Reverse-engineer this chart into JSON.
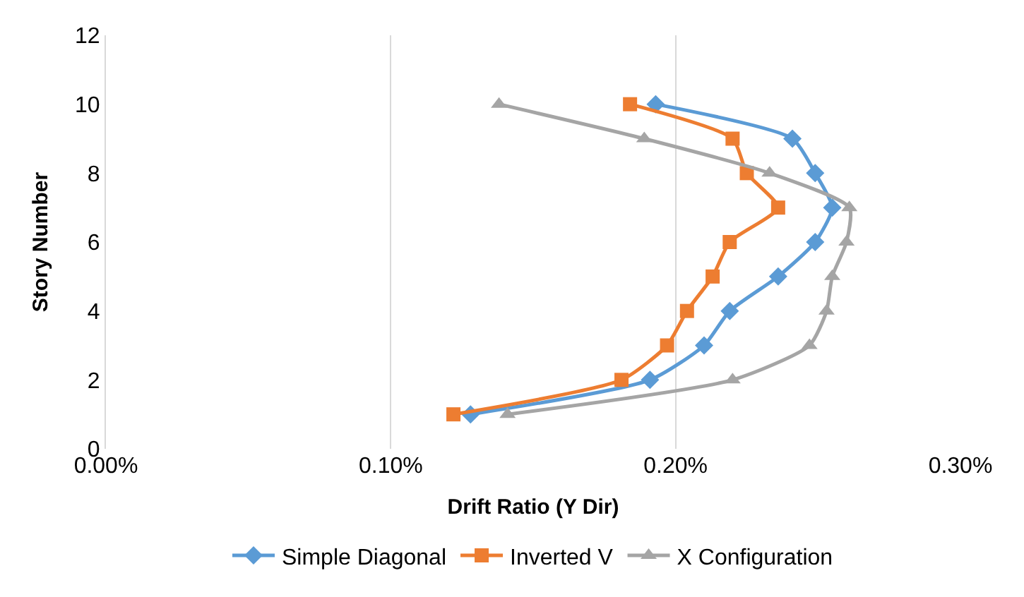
{
  "chart_data": {
    "type": "line",
    "xlabel": "Drift Ratio (Y Dir)",
    "ylabel": "Story Number",
    "xlim": [
      0,
      0.3
    ],
    "xticks": [
      {
        "value": 0,
        "label": "0.00%"
      },
      {
        "value": 0.1,
        "label": "0.10%"
      },
      {
        "value": 0.2,
        "label": "0.20%"
      },
      {
        "value": 0.3,
        "label": "0.30%"
      }
    ],
    "ylim": [
      0,
      12
    ],
    "yticks": [
      0,
      2,
      4,
      6,
      8,
      10,
      12
    ],
    "grid": "x",
    "legend": "bottom",
    "series": [
      {
        "name": "Simple Diagonal",
        "color": "#5b9bd5",
        "marker": "diamond",
        "x": [
          0.128,
          0.191,
          0.21,
          0.219,
          0.236,
          0.249,
          0.255,
          0.249,
          0.241,
          0.193
        ],
        "values": [
          1,
          2,
          3,
          4,
          5,
          6,
          7,
          8,
          9,
          10
        ]
      },
      {
        "name": "Inverted V",
        "color": "#ed7d31",
        "marker": "square",
        "x": [
          0.122,
          0.181,
          0.197,
          0.204,
          0.213,
          0.219,
          0.236,
          0.225,
          0.22,
          0.184
        ],
        "values": [
          1,
          2,
          3,
          4,
          5,
          6,
          7,
          8,
          9,
          10
        ]
      },
      {
        "name": "X Configuration",
        "color": "#a5a5a5",
        "marker": "triangle",
        "x": [
          0.141,
          0.22,
          0.247,
          0.253,
          0.255,
          0.26,
          0.261,
          0.233,
          0.189,
          0.138
        ],
        "values": [
          1,
          2,
          3,
          4,
          5,
          6,
          7,
          8,
          9,
          10
        ]
      }
    ]
  }
}
